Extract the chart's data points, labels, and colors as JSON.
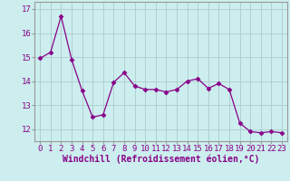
{
  "x": [
    0,
    1,
    2,
    3,
    4,
    5,
    6,
    7,
    8,
    9,
    10,
    11,
    12,
    13,
    14,
    15,
    16,
    17,
    18,
    19,
    20,
    21,
    22,
    23
  ],
  "y": [
    14.95,
    15.2,
    16.7,
    14.9,
    13.6,
    12.5,
    12.6,
    13.95,
    14.35,
    13.8,
    13.65,
    13.65,
    13.55,
    13.65,
    14.0,
    14.1,
    13.7,
    13.9,
    13.65,
    12.25,
    11.9,
    11.85,
    11.9,
    11.85
  ],
  "line_color": "#880088",
  "marker": "D",
  "marker_size": 2.5,
  "bg_color": "#cceeee",
  "grid_color": "#aacccc",
  "xlabel": "Windchill (Refroidissement éolien,°C)",
  "xlabel_color": "#880088",
  "xlabel_fontsize": 7,
  "tick_color": "#880088",
  "tick_fontsize": 6.5,
  "yticks": [
    12,
    13,
    14,
    15,
    16,
    17
  ],
  "xtick_labels": [
    "0",
    "1",
    "2",
    "3",
    "4",
    "5",
    "6",
    "7",
    "8",
    "9",
    "10",
    "11",
    "12",
    "13",
    "14",
    "15",
    "16",
    "17",
    "18",
    "19",
    "20",
    "21",
    "22",
    "23"
  ],
  "ylim": [
    11.5,
    17.3
  ],
  "xlim": [
    -0.5,
    23.5
  ]
}
